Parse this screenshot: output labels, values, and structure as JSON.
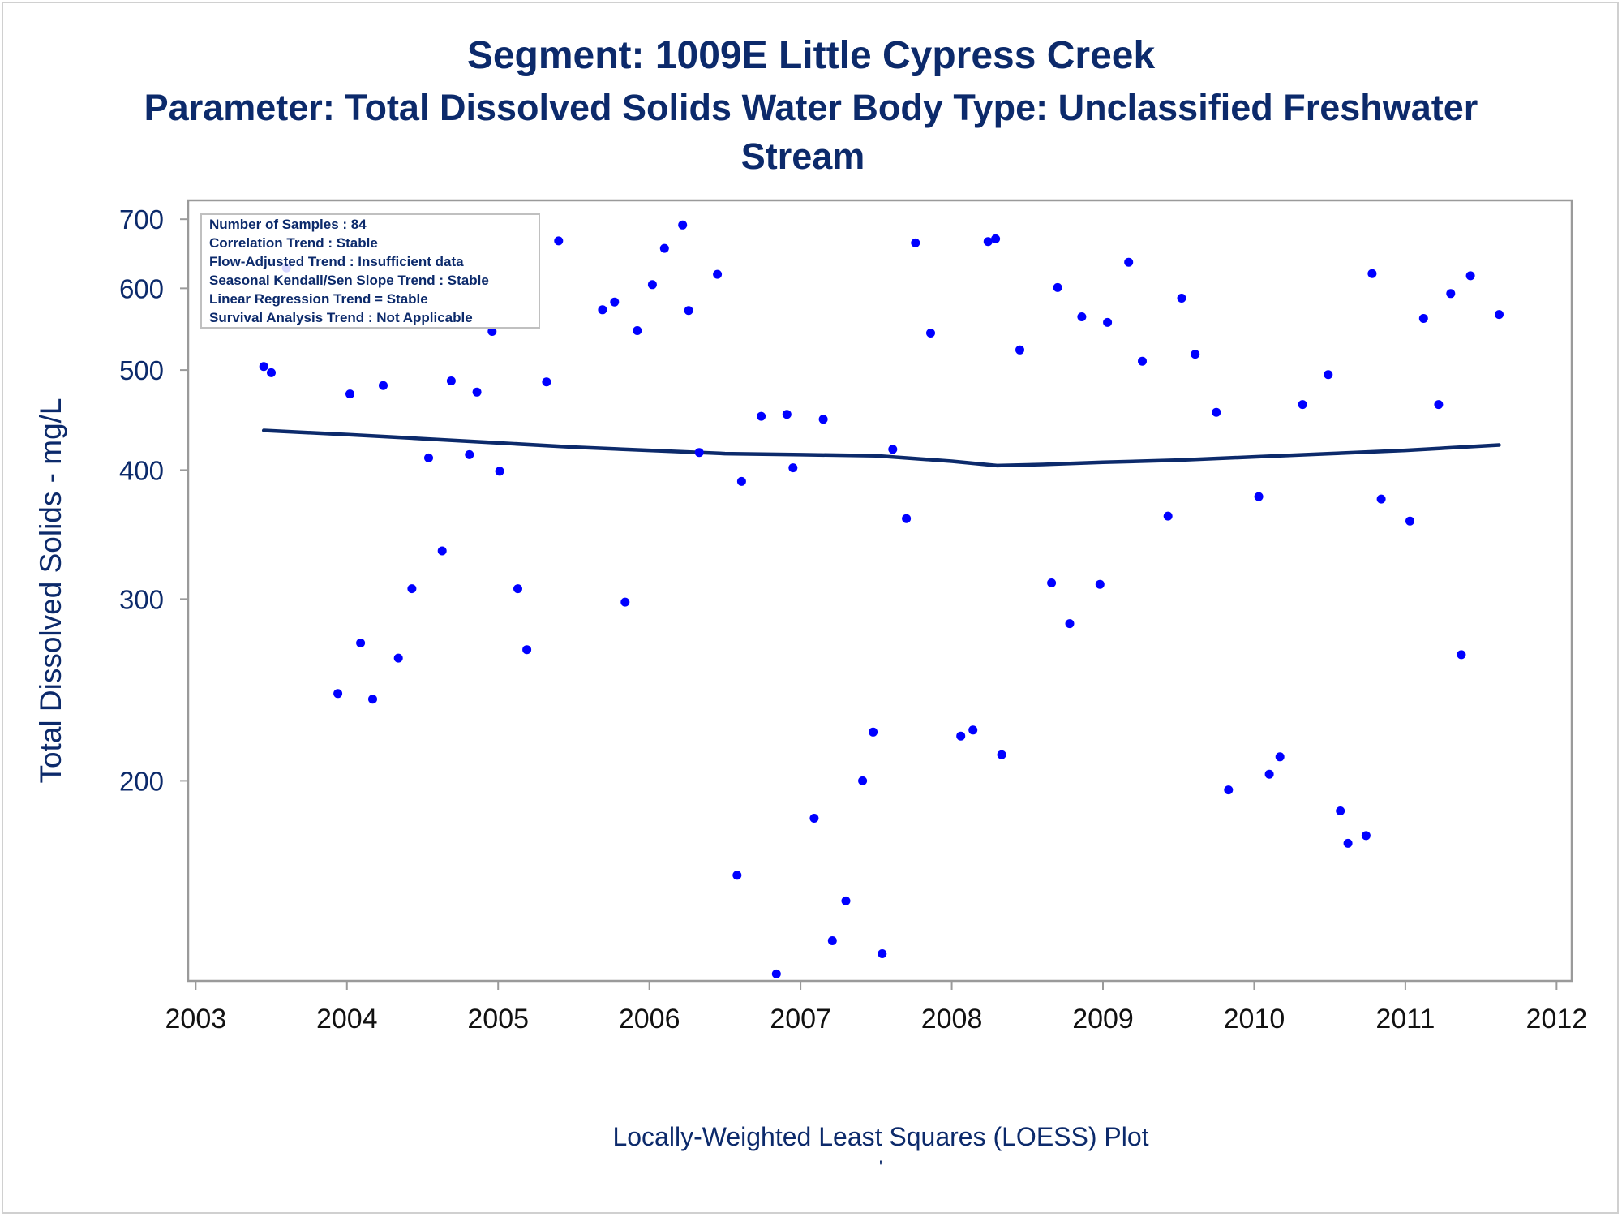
{
  "chart_data": {
    "type": "scatter",
    "title": "Segment: 1009E  Little Cypress Creek",
    "subtitle_line1": "Parameter: Total Dissolved Solids   Water Body Type: Unclassified Freshwater",
    "subtitle_line2": "Stream",
    "ylabel": "Total Dissolved Solids - mg/L",
    "xlabel": "",
    "footnote": "Locally-Weighted Least Squares (LOESS) Plot",
    "footnote_mark": "'",
    "y_scale": "log",
    "ylim": [
      128,
      730
    ],
    "xlim": [
      2002.95,
      2012.1
    ],
    "y_ticks": [
      200,
      300,
      400,
      500,
      600,
      700
    ],
    "y_tick_labels": [
      "200",
      "300",
      "400",
      "500",
      "600",
      "700"
    ],
    "x_ticks": [
      2003,
      2004,
      2005,
      2006,
      2007,
      2008,
      2009,
      2010,
      2011,
      2012
    ],
    "x_tick_labels": [
      "2003",
      "2004",
      "2005",
      "2006",
      "2007",
      "2008",
      "2009",
      "2010",
      "2011",
      "2012"
    ],
    "grid": false,
    "colors": {
      "points": "#0000ff",
      "loess": "#0c2a6b",
      "text": "#0c2a6b",
      "axis": "#9a9a9a"
    },
    "stats_box": [
      "Number of Samples : 84",
      "Correlation Trend : Stable",
      "Flow-Adjusted Trend : Insufficient data",
      "Seasonal Kendall/Sen Slope Trend : Stable",
      "Linear Regression Trend = Stable",
      "Survival Analysis Trend : Not Applicable"
    ],
    "loess_series": {
      "name": "",
      "x": [
        2003.45,
        2004.0,
        2004.5,
        2005.0,
        2005.5,
        2006.0,
        2006.5,
        2007.0,
        2007.5,
        2008.0,
        2008.3,
        2008.6,
        2009.0,
        2009.5,
        2010.0,
        2010.5,
        2011.0,
        2011.62
      ],
      "y": [
        437,
        433,
        429,
        425,
        421,
        418,
        415,
        414,
        413,
        408,
        404,
        405,
        407,
        409,
        412,
        415,
        418,
        423
      ]
    },
    "points": [
      {
        "x": 2003.45,
        "y": 504
      },
      {
        "x": 2003.5,
        "y": 497
      },
      {
        "x": 2003.6,
        "y": 628
      },
      {
        "x": 2003.94,
        "y": 243
      },
      {
        "x": 2004.02,
        "y": 474
      },
      {
        "x": 2004.09,
        "y": 272
      },
      {
        "x": 2004.17,
        "y": 240
      },
      {
        "x": 2004.24,
        "y": 483
      },
      {
        "x": 2004.34,
        "y": 263
      },
      {
        "x": 2004.43,
        "y": 307
      },
      {
        "x": 2004.54,
        "y": 411
      },
      {
        "x": 2004.63,
        "y": 334
      },
      {
        "x": 2004.69,
        "y": 488
      },
      {
        "x": 2004.81,
        "y": 414
      },
      {
        "x": 2004.86,
        "y": 476
      },
      {
        "x": 2004.96,
        "y": 545
      },
      {
        "x": 2005.01,
        "y": 399
      },
      {
        "x": 2005.13,
        "y": 307
      },
      {
        "x": 2005.19,
        "y": 268
      },
      {
        "x": 2005.32,
        "y": 487
      },
      {
        "x": 2005.4,
        "y": 667
      },
      {
        "x": 2005.69,
        "y": 572
      },
      {
        "x": 2005.77,
        "y": 582
      },
      {
        "x": 2005.84,
        "y": 298
      },
      {
        "x": 2005.92,
        "y": 546
      },
      {
        "x": 2006.02,
        "y": 605
      },
      {
        "x": 2006.1,
        "y": 656
      },
      {
        "x": 2006.22,
        "y": 691
      },
      {
        "x": 2006.26,
        "y": 571
      },
      {
        "x": 2006.33,
        "y": 416
      },
      {
        "x": 2006.45,
        "y": 619
      },
      {
        "x": 2006.58,
        "y": 162
      },
      {
        "x": 2006.61,
        "y": 390
      },
      {
        "x": 2006.74,
        "y": 451
      },
      {
        "x": 2006.84,
        "y": 130
      },
      {
        "x": 2006.91,
        "y": 453
      },
      {
        "x": 2006.95,
        "y": 402
      },
      {
        "x": 2007.09,
        "y": 184
      },
      {
        "x": 2007.15,
        "y": 448
      },
      {
        "x": 2007.21,
        "y": 140
      },
      {
        "x": 2007.3,
        "y": 153
      },
      {
        "x": 2007.41,
        "y": 200
      },
      {
        "x": 2007.48,
        "y": 223
      },
      {
        "x": 2007.54,
        "y": 136
      },
      {
        "x": 2007.61,
        "y": 419
      },
      {
        "x": 2007.7,
        "y": 359
      },
      {
        "x": 2007.76,
        "y": 664
      },
      {
        "x": 2007.86,
        "y": 543
      },
      {
        "x": 2008.06,
        "y": 221
      },
      {
        "x": 2008.14,
        "y": 224
      },
      {
        "x": 2008.24,
        "y": 666
      },
      {
        "x": 2008.29,
        "y": 670
      },
      {
        "x": 2008.33,
        "y": 212
      },
      {
        "x": 2008.45,
        "y": 523
      },
      {
        "x": 2008.66,
        "y": 311
      },
      {
        "x": 2008.7,
        "y": 601
      },
      {
        "x": 2008.78,
        "y": 284
      },
      {
        "x": 2008.86,
        "y": 563
      },
      {
        "x": 2008.98,
        "y": 310
      },
      {
        "x": 2009.03,
        "y": 556
      },
      {
        "x": 2009.17,
        "y": 636
      },
      {
        "x": 2009.26,
        "y": 510
      },
      {
        "x": 2009.43,
        "y": 361
      },
      {
        "x": 2009.52,
        "y": 587
      },
      {
        "x": 2009.61,
        "y": 518
      },
      {
        "x": 2009.75,
        "y": 455
      },
      {
        "x": 2009.83,
        "y": 196
      },
      {
        "x": 2010.03,
        "y": 377
      },
      {
        "x": 2010.1,
        "y": 203
      },
      {
        "x": 2010.17,
        "y": 211
      },
      {
        "x": 2010.32,
        "y": 463
      },
      {
        "x": 2010.49,
        "y": 495
      },
      {
        "x": 2010.57,
        "y": 187
      },
      {
        "x": 2010.62,
        "y": 174
      },
      {
        "x": 2010.74,
        "y": 177
      },
      {
        "x": 2010.78,
        "y": 620
      },
      {
        "x": 2010.84,
        "y": 375
      },
      {
        "x": 2011.03,
        "y": 357
      },
      {
        "x": 2011.12,
        "y": 561
      },
      {
        "x": 2011.22,
        "y": 463
      },
      {
        "x": 2011.3,
        "y": 593
      },
      {
        "x": 2011.37,
        "y": 265
      },
      {
        "x": 2011.43,
        "y": 617
      },
      {
        "x": 2011.62,
        "y": 566
      }
    ]
  }
}
